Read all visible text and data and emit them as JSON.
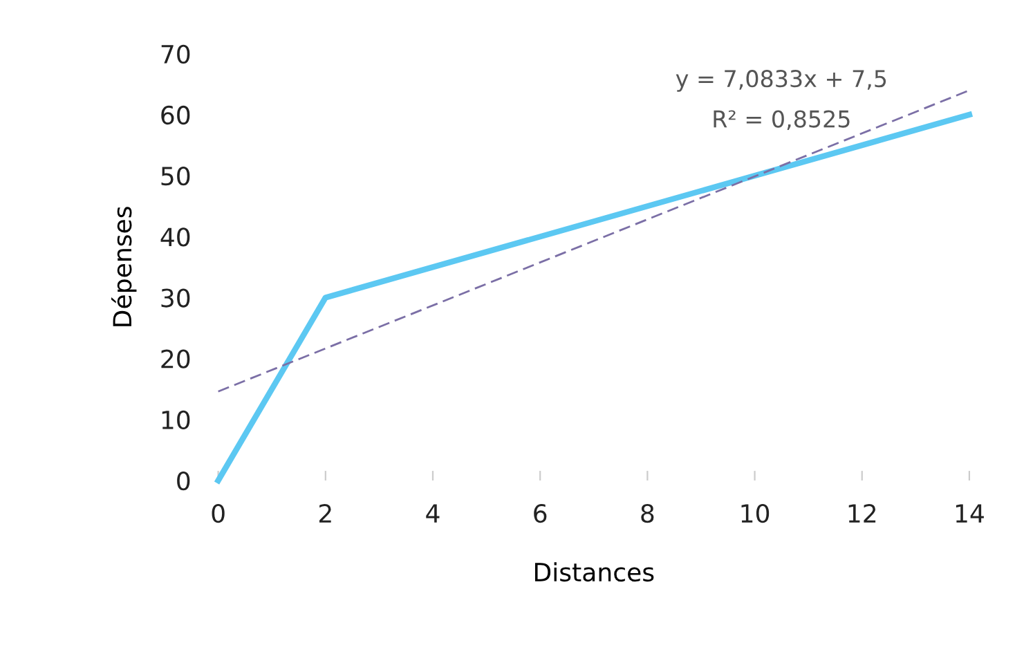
{
  "chart_data": {
    "type": "line",
    "xlabel": "Distances",
    "ylabel": "Dépenses",
    "series": [
      {
        "color": "#5cc8f2",
        "x": [
          0,
          2,
          14
        ],
        "values": [
          0,
          30,
          60
        ],
        "line_style": "solid"
      },
      {
        "color": "#7b6fa6",
        "x": [
          0,
          14
        ],
        "values": [
          14.6,
          64
        ],
        "line_style": "dashed"
      }
    ],
    "annotations": [
      "y = 7,0833x + 7,5",
      "R² = 0,8525"
    ],
    "xlim": [
      0,
      14
    ],
    "xticks": [
      0,
      2,
      4,
      6,
      8,
      10,
      12,
      14
    ],
    "ylim": [
      0,
      70
    ],
    "yticks": [
      0,
      10,
      20,
      30,
      40,
      50,
      60,
      70
    ],
    "grid": false,
    "legend": false,
    "marker": "none"
  }
}
